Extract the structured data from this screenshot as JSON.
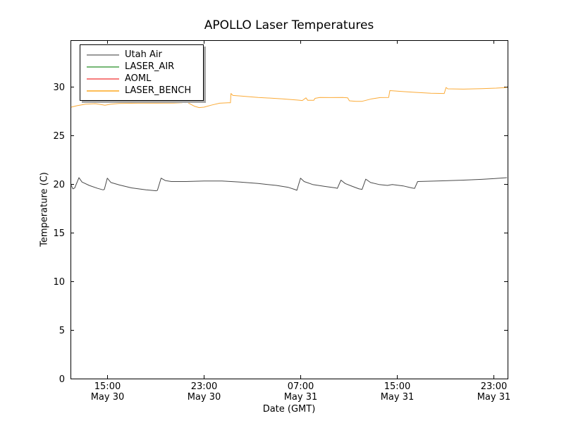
{
  "window": {
    "background": "#ffffff",
    "axes_color": "#000000"
  },
  "chart_data": {
    "type": "line",
    "title": "APOLLO Laser Temperatures",
    "xlabel": "Date (GMT)",
    "ylabel": "Temperature (C)",
    "grid": false,
    "legend_position": "upper left",
    "x_unit": "hours since May 30 00:00 GMT",
    "xlim": [
      11.95,
      48.15
    ],
    "ylim": [
      0,
      34.78
    ],
    "y_ticks": [
      0,
      5,
      10,
      15,
      20,
      25,
      30
    ],
    "x_ticks": [
      {
        "hour": 15,
        "time": "15:00",
        "date": "May 30"
      },
      {
        "hour": 23,
        "time": "23:00",
        "date": "May 30"
      },
      {
        "hour": 31,
        "time": "07:00",
        "date": "May 31"
      },
      {
        "hour": 39,
        "time": "15:00",
        "date": "May 31"
      },
      {
        "hour": 47,
        "time": "23:00",
        "date": "May 31"
      }
    ],
    "series": [
      {
        "name": "Utah Air",
        "legend_color": "#9b9b9b",
        "line_color": "#4a4a4a",
        "points": [
          [
            12.0,
            19.9
          ],
          [
            12.15,
            19.5
          ],
          [
            12.3,
            19.6
          ],
          [
            12.65,
            20.65
          ],
          [
            12.9,
            20.2
          ],
          [
            13.5,
            19.85
          ],
          [
            14.2,
            19.55
          ],
          [
            14.65,
            19.4
          ],
          [
            14.75,
            19.45
          ],
          [
            15.0,
            20.6
          ],
          [
            15.3,
            20.15
          ],
          [
            16.0,
            19.9
          ],
          [
            17.0,
            19.6
          ],
          [
            18.2,
            19.4
          ],
          [
            19.05,
            19.3
          ],
          [
            19.15,
            19.35
          ],
          [
            19.45,
            20.6
          ],
          [
            19.8,
            20.35
          ],
          [
            20.3,
            20.25
          ],
          [
            21.5,
            20.25
          ],
          [
            23.0,
            20.3
          ],
          [
            24.5,
            20.3
          ],
          [
            26.0,
            20.2
          ],
          [
            27.5,
            20.05
          ],
          [
            29.0,
            19.85
          ],
          [
            30.0,
            19.65
          ],
          [
            30.5,
            19.45
          ],
          [
            30.7,
            19.35
          ],
          [
            31.0,
            20.6
          ],
          [
            31.3,
            20.25
          ],
          [
            32.0,
            19.95
          ],
          [
            33.0,
            19.75
          ],
          [
            33.9,
            19.6
          ],
          [
            34.05,
            19.55
          ],
          [
            34.35,
            20.4
          ],
          [
            34.7,
            20.05
          ],
          [
            35.3,
            19.75
          ],
          [
            35.85,
            19.5
          ],
          [
            36.1,
            19.45
          ],
          [
            36.4,
            20.5
          ],
          [
            36.8,
            20.15
          ],
          [
            37.5,
            19.95
          ],
          [
            38.2,
            19.85
          ],
          [
            38.6,
            19.95
          ],
          [
            39.5,
            19.8
          ],
          [
            40.2,
            19.6
          ],
          [
            40.45,
            19.55
          ],
          [
            40.7,
            20.25
          ],
          [
            41.5,
            20.28
          ],
          [
            43.0,
            20.33
          ],
          [
            44.5,
            20.4
          ],
          [
            46.0,
            20.48
          ],
          [
            47.0,
            20.55
          ],
          [
            48.1,
            20.65
          ]
        ]
      },
      {
        "name": "LASER_AIR",
        "legend_color": "#77b877",
        "line_color": "#77b877",
        "points": []
      },
      {
        "name": "AOML",
        "legend_color": "#f67d7d",
        "line_color": "#f67d7d",
        "points": []
      },
      {
        "name": "LASER_BENCH",
        "legend_color": "#fdbd57",
        "line_color": "#fbab38",
        "points": [
          [
            12.0,
            27.9
          ],
          [
            12.5,
            28.05
          ],
          [
            13.2,
            28.2
          ],
          [
            14.0,
            28.25
          ],
          [
            14.55,
            28.15
          ],
          [
            14.8,
            28.1
          ],
          [
            15.3,
            28.2
          ],
          [
            16.0,
            28.27
          ],
          [
            17.5,
            28.3
          ],
          [
            19.0,
            28.3
          ],
          [
            20.5,
            28.32
          ],
          [
            21.2,
            28.35
          ],
          [
            21.3,
            28.6
          ],
          [
            21.45,
            28.35
          ],
          [
            21.6,
            28.5
          ],
          [
            21.75,
            28.3
          ],
          [
            22.2,
            28.0
          ],
          [
            22.6,
            27.85
          ],
          [
            23.0,
            27.9
          ],
          [
            23.6,
            28.1
          ],
          [
            24.3,
            28.3
          ],
          [
            25.0,
            28.35
          ],
          [
            25.2,
            28.35
          ],
          [
            25.24,
            29.3
          ],
          [
            25.4,
            29.1
          ],
          [
            26.0,
            29.05
          ],
          [
            27.5,
            28.9
          ],
          [
            29.5,
            28.75
          ],
          [
            30.8,
            28.62
          ],
          [
            31.15,
            28.58
          ],
          [
            31.45,
            28.85
          ],
          [
            31.6,
            28.6
          ],
          [
            32.1,
            28.6
          ],
          [
            32.2,
            28.8
          ],
          [
            32.6,
            28.9
          ],
          [
            33.5,
            28.88
          ],
          [
            34.5,
            28.9
          ],
          [
            34.9,
            28.85
          ],
          [
            35.05,
            28.55
          ],
          [
            35.6,
            28.5
          ],
          [
            36.1,
            28.5
          ],
          [
            36.9,
            28.75
          ],
          [
            37.6,
            28.88
          ],
          [
            38.3,
            28.9
          ],
          [
            38.4,
            29.6
          ],
          [
            39.5,
            29.5
          ],
          [
            40.5,
            29.42
          ],
          [
            41.8,
            29.33
          ],
          [
            42.9,
            29.3
          ],
          [
            43.05,
            29.92
          ],
          [
            43.2,
            29.78
          ],
          [
            44.5,
            29.75
          ],
          [
            46.0,
            29.8
          ],
          [
            47.2,
            29.85
          ],
          [
            48.1,
            29.92
          ]
        ]
      }
    ]
  }
}
